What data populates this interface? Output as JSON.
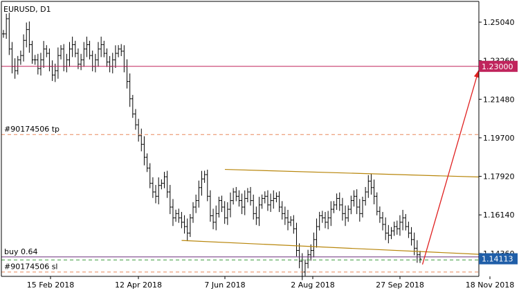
{
  "chart_data": {
    "type": "ohlc",
    "title": "EURUSD, D1",
    "ylim": [
      1.133,
      1.26
    ],
    "y_ticks": [
      "1.25040",
      "1.23260",
      "1.21480",
      "1.19700",
      "1.17920",
      "1.16140",
      "1.14360"
    ],
    "x_ticks": [
      "15 Feb 2018",
      "12 Apr 2018",
      "7 Jun 2018",
      "2 Aug 2018",
      "27 Sep 2018",
      "18 Nov 2018"
    ],
    "x_tick_dates": [
      "2018-02-15",
      "2018-04-12",
      "2018-06-07",
      "2018-08-02",
      "2018-09-27",
      "2018-11-18"
    ],
    "current_price": {
      "value": 1.14113,
      "label": "1.14113",
      "color": "#1f5ea8"
    },
    "horizontal_lines": [
      {
        "name": "target",
        "value": 1.23,
        "label": "1.23000",
        "color": "#c0245c",
        "style": "solid"
      },
      {
        "name": "take-profit",
        "value": 1.1985,
        "label": "#90174506 tp",
        "color": "#e8875a",
        "style": "dashed"
      },
      {
        "name": "buy",
        "value": 1.142,
        "label": "buy 0.64",
        "color": "#6a2c7a",
        "style": "solid"
      },
      {
        "name": "buy-green",
        "value": 1.1406,
        "label": "",
        "color": "#3a9a3a",
        "style": "dashed"
      },
      {
        "name": "stop-loss",
        "value": 1.135,
        "label": "#90174506 sl",
        "color": "#e8875a",
        "style": "dashed"
      }
    ],
    "channel_lines": [
      {
        "name": "channel-upper",
        "from": [
          "2018-06-07",
          1.1824
        ],
        "to": [
          "2018-11-18",
          1.1789
        ],
        "color": "#b8860b"
      },
      {
        "name": "channel-lower",
        "from": [
          "2018-05-10",
          1.1496
        ],
        "to": [
          "2018-11-18",
          1.1432
        ],
        "color": "#b8860b"
      }
    ],
    "projection_arrow": {
      "from": [
        "2018-10-10",
        1.1385
      ],
      "to": [
        "2018-11-17",
        1.23
      ],
      "color": "#e02020"
    },
    "closes": [
      1.245,
      1.252,
      1.238,
      1.23,
      1.228,
      1.233,
      1.235,
      1.242,
      1.247,
      1.24,
      1.233,
      1.233,
      1.229,
      1.233,
      1.238,
      1.236,
      1.23,
      1.226,
      1.228,
      1.235,
      1.238,
      1.23,
      1.233,
      1.238,
      1.24,
      1.236,
      1.231,
      1.233,
      1.238,
      1.24,
      1.235,
      1.23,
      1.233,
      1.238,
      1.24,
      1.236,
      1.232,
      1.23,
      1.233,
      1.236,
      1.238,
      1.237,
      1.23,
      1.223,
      1.215,
      1.208,
      1.203,
      1.198,
      1.194,
      1.188,
      1.183,
      1.176,
      1.172,
      1.17,
      1.175,
      1.176,
      1.179,
      1.172,
      1.165,
      1.16,
      1.162,
      1.16,
      1.158,
      1.156,
      1.153,
      1.16,
      1.165,
      1.168,
      1.174,
      1.178,
      1.18,
      1.17,
      1.161,
      1.158,
      1.162,
      1.168,
      1.165,
      1.16,
      1.164,
      1.168,
      1.172,
      1.17,
      1.168,
      1.165,
      1.169,
      1.172,
      1.168,
      1.162,
      1.16,
      1.166,
      1.169,
      1.17,
      1.166,
      1.168,
      1.169,
      1.17,
      1.165,
      1.162,
      1.16,
      1.158,
      1.159,
      1.155,
      1.145,
      1.14,
      1.135,
      1.139,
      1.143,
      1.145,
      1.15,
      1.156,
      1.161,
      1.16,
      1.158,
      1.16,
      1.164,
      1.166,
      1.169,
      1.166,
      1.162,
      1.16,
      1.164,
      1.168,
      1.17,
      1.165,
      1.162,
      1.168,
      1.172,
      1.177,
      1.174,
      1.17,
      1.163,
      1.16,
      1.157,
      1.153,
      1.152,
      1.154,
      1.156,
      1.155,
      1.158,
      1.16,
      1.156,
      1.153,
      1.15,
      1.146,
      1.143,
      1.141
    ]
  }
}
